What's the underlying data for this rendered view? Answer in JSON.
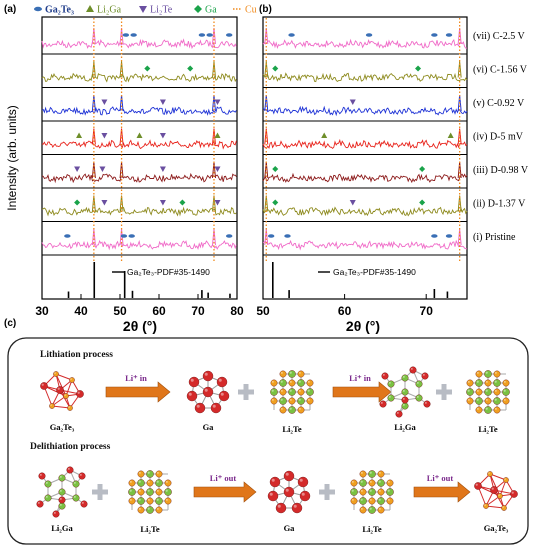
{
  "panels": {
    "a": "(a)",
    "b": "(b)",
    "c": "(c)"
  },
  "legend": [
    {
      "label": "Ga₂Te₃",
      "icon": "ga2te3-marker-icon",
      "color": "#3a6fb5",
      "label_color": "#1f3c8a"
    },
    {
      "label": "Li₂Ga",
      "icon": "triangle-up-icon",
      "color": "#6e8e2a",
      "label_color": "#6e8e2a"
    },
    {
      "label": "Li₂Te",
      "icon": "triangle-down-icon",
      "color": "#6a4fa0",
      "label_color": "#6a4fa0"
    },
    {
      "label": "Ga",
      "icon": "diamond-icon",
      "color": "#1aa34a",
      "label_color": "#1aa34a"
    },
    {
      "label": "Cu",
      "icon": "dotted-line-icon",
      "color": "#f08a1c",
      "label_color": "#f08a1c"
    }
  ],
  "chart_data": [
    {
      "type": "line",
      "panel": "(a)",
      "ylabel": "Intensity (arb. units)",
      "xlabel": "2θ (°)",
      "xlim": [
        30,
        80
      ],
      "xticks": [
        "30",
        "40",
        "50",
        "60",
        "70",
        "80"
      ],
      "cu_reference_lines": [
        43.3,
        50.4,
        74.1
      ],
      "series": [
        {
          "name": "(vii) C-2.5 V",
          "color": "#f06bc8"
        },
        {
          "name": "(vi) C-1.56 V",
          "color": "#8e8b1f"
        },
        {
          "name": "(v) C-0.92 V",
          "color": "#1f33d6"
        },
        {
          "name": "(iv) D-5 mV",
          "color": "#e8241c"
        },
        {
          "name": "(iii) D-0.98 V",
          "color": "#8c1a1a"
        },
        {
          "name": "(ii) D-1.37 V",
          "color": "#8e8b1f"
        },
        {
          "name": "(i) Pristine",
          "color": "#f06bc8"
        }
      ],
      "reference": {
        "label": "Ga₂Te₃-PDF#35-1490",
        "peaks": [
          {
            "x": 43.4,
            "h": 1.0
          },
          {
            "x": 51.2,
            "h": 0.75
          },
          {
            "x": 36.8,
            "h": 0.18
          },
          {
            "x": 53.2,
            "h": 0.2
          },
          {
            "x": 71.0,
            "h": 0.22
          },
          {
            "x": 72.6,
            "h": 0.15
          },
          {
            "x": 78.2,
            "h": 0.12
          }
        ]
      }
    },
    {
      "type": "line",
      "panel": "(b)",
      "xlabel": "2θ (°)",
      "xlim": [
        50,
        75
      ],
      "xticks": [
        "50",
        "60",
        "70"
      ],
      "cu_reference_lines": [
        50.4,
        74.1
      ],
      "series_labels": [
        "(vii) C-2.5 V",
        "(vi) C-1.56 V",
        "(v) C-0.92 V",
        "(iv) D-5 mV",
        "(iii) D-0.98 V",
        "(ii) D-1.37 V",
        "(i) Pristine"
      ],
      "reference": {
        "label": "Ga₂Te₃-PDF#35-1490",
        "peaks": [
          {
            "x": 51.2,
            "h": 1.0
          },
          {
            "x": 53.2,
            "h": 0.22
          },
          {
            "x": 71.0,
            "h": 0.25
          },
          {
            "x": 72.6,
            "h": 0.18
          }
        ]
      }
    }
  ],
  "scheme": {
    "lithiation_title": "Lithiation process",
    "delithiation_title": "Delithiation process",
    "row1": [
      "Ga₂Te₃",
      "Ga",
      "Li₂Te",
      "Li₂Ga",
      "Li₂Te"
    ],
    "row1_arrows": [
      "Li⁺ in",
      "Li⁺ in"
    ],
    "row2": [
      "Li₂Ga",
      "Li₂Te",
      "Ga",
      "Li₂Te",
      "Ga₂Te₃"
    ],
    "row2_arrows": [
      "Li⁺ out",
      "Li⁺ out"
    ]
  }
}
